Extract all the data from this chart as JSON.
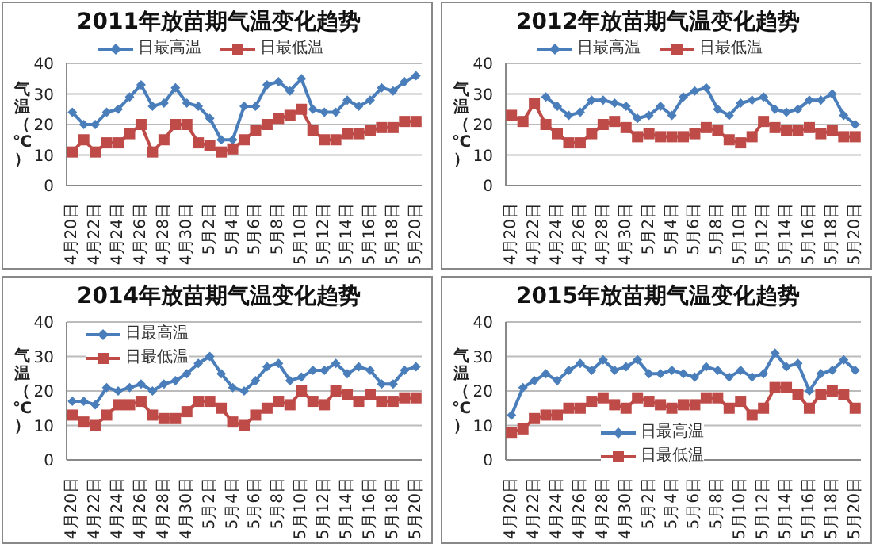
{
  "chart_data": [
    {
      "type": "line",
      "title": "2011年放苗期气温变化趋势",
      "ylabel": "气温（℃）",
      "categories": [
        "4月20日",
        null,
        "4月22日",
        null,
        "4月24日",
        null,
        "4月26日",
        null,
        "4月28日",
        null,
        "4月30日",
        null,
        "5月2日",
        null,
        "5月4日",
        null,
        "5月6日",
        null,
        "5月8日",
        null,
        "5月10日",
        null,
        "5月12日",
        null,
        "5月14日",
        null,
        "5月16日",
        null,
        "5月18日",
        null,
        "5月20日"
      ],
      "ylim": [
        0,
        40
      ],
      "yticks": [
        0,
        10,
        20,
        30,
        40
      ],
      "grid": "y",
      "legend": "top",
      "series": [
        {
          "name": "日最高温",
          "color": "#4a7ebb",
          "marker": "diamond",
          "values": [
            24,
            20,
            20,
            24,
            25,
            29,
            33,
            26,
            27,
            32,
            27,
            26,
            22,
            15,
            15,
            26,
            26,
            33,
            34,
            31,
            35,
            25,
            24,
            24,
            28,
            26,
            28,
            32,
            31,
            34,
            36
          ]
        },
        {
          "name": "日最低温",
          "color": "#be4b48",
          "marker": "square",
          "values": [
            11,
            15,
            11,
            14,
            14,
            17,
            20,
            11,
            15,
            20,
            20,
            14,
            13,
            11,
            12,
            15,
            18,
            20,
            22,
            23,
            25,
            18,
            15,
            15,
            17,
            17,
            18,
            19,
            19,
            21,
            21
          ]
        }
      ]
    },
    {
      "type": "line",
      "title": "2012年放苗期气温变化趋势",
      "ylabel": "气温（℃）",
      "categories": [
        "4月20日",
        null,
        "4月22日",
        null,
        "4月24日",
        null,
        "4月26日",
        null,
        "4月28日",
        null,
        "4月30日",
        null,
        "5月2日",
        null,
        "5月4日",
        null,
        "5月6日",
        null,
        "5月8日",
        null,
        "5月10日",
        null,
        "5月12日",
        null,
        "5月14日",
        null,
        "5月16日",
        null,
        "5月18日",
        null,
        "5月20日"
      ],
      "ylim": [
        0,
        40
      ],
      "yticks": [
        0,
        10,
        20,
        30,
        40
      ],
      "grid": "y",
      "legend": "top",
      "series": [
        {
          "name": "日最高温",
          "color": "#4a7ebb",
          "marker": "diamond",
          "values": [
            null,
            null,
            null,
            29,
            26,
            23,
            24,
            28,
            28,
            27,
            26,
            22,
            23,
            26,
            23,
            29,
            31,
            32,
            25,
            23,
            27,
            28,
            29,
            25,
            24,
            25,
            28,
            28,
            30,
            23,
            20
          ]
        },
        {
          "name": "日最低温",
          "color": "#be4b48",
          "marker": "square",
          "values": [
            23,
            21,
            27,
            20,
            17,
            14,
            14,
            17,
            20,
            21,
            19,
            16,
            17,
            16,
            16,
            16,
            17,
            19,
            18,
            15,
            14,
            16,
            21,
            19,
            18,
            18,
            19,
            17,
            18,
            16,
            16
          ]
        }
      ]
    },
    {
      "type": "line",
      "title": "2014年放苗期气温变化趋势",
      "ylabel": "气温（℃）",
      "categories": [
        "4月20日",
        null,
        "4月22日",
        null,
        "4月24日",
        null,
        "4月26日",
        null,
        "4月28日",
        null,
        "4月30日",
        null,
        "5月2日",
        null,
        "5月4日",
        null,
        "5月6日",
        null,
        "5月8日",
        null,
        "5月10日",
        null,
        "5月12日",
        null,
        "5月14日",
        null,
        "5月16日",
        null,
        "5月18日",
        null,
        "5月20日"
      ],
      "ylim": [
        0,
        40
      ],
      "yticks": [
        0,
        10,
        20,
        30,
        40
      ],
      "grid": "y",
      "legend": "top left",
      "series": [
        {
          "name": "日最高温",
          "color": "#4a7ebb",
          "marker": "diamond",
          "values": [
            17,
            17,
            16,
            21,
            20,
            21,
            22,
            20,
            22,
            23,
            25,
            28,
            30,
            25,
            21,
            20,
            23,
            27,
            28,
            23,
            24,
            26,
            26,
            28,
            25,
            27,
            26,
            22,
            22,
            26,
            27
          ]
        },
        {
          "name": "日最低温",
          "color": "#be4b48",
          "marker": "square",
          "values": [
            13,
            11,
            10,
            13,
            16,
            16,
            17,
            13,
            12,
            12,
            14,
            17,
            17,
            15,
            11,
            10,
            13,
            15,
            17,
            16,
            20,
            17,
            16,
            20,
            19,
            17,
            19,
            17,
            17,
            18,
            18
          ]
        }
      ]
    },
    {
      "type": "line",
      "title": "2015年放苗期气温变化趋势",
      "ylabel": "气温（℃）",
      "categories": [
        "4月20日",
        null,
        "4月22日",
        null,
        "4月24日",
        null,
        "4月26日",
        null,
        "4月28日",
        null,
        "4月30日",
        null,
        "5月2日",
        null,
        "5月4日",
        null,
        "5月6日",
        null,
        "5月8日",
        null,
        "5月10日",
        null,
        "5月12日",
        null,
        "5月14日",
        null,
        "5月16日",
        null,
        "5月18日",
        null,
        "5月20日"
      ],
      "ylim": [
        0,
        40
      ],
      "yticks": [
        0,
        10,
        20,
        30,
        40
      ],
      "grid": "y",
      "legend": "bottom",
      "series": [
        {
          "name": "日最高温",
          "color": "#4a7ebb",
          "marker": "diamond",
          "values": [
            13,
            21,
            23,
            25,
            23,
            26,
            28,
            26,
            29,
            26,
            27,
            29,
            25,
            25,
            26,
            25,
            24,
            27,
            26,
            24,
            26,
            24,
            25,
            31,
            27,
            28,
            20,
            25,
            26,
            29,
            26
          ]
        },
        {
          "name": "日最低温",
          "color": "#be4b48",
          "marker": "square",
          "values": [
            8,
            9,
            12,
            13,
            13,
            15,
            15,
            17,
            18,
            16,
            15,
            18,
            17,
            16,
            15,
            16,
            16,
            18,
            18,
            15,
            17,
            13,
            15,
            21,
            21,
            19,
            15,
            19,
            20,
            19,
            15
          ]
        }
      ]
    }
  ]
}
